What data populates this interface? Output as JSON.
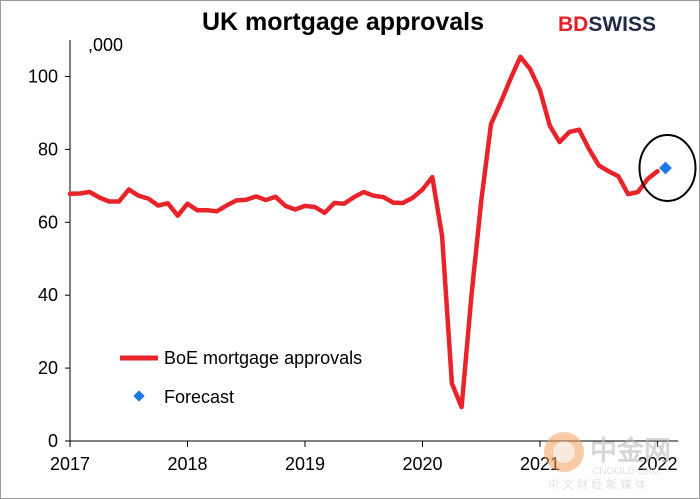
{
  "brand": {
    "logo_left": "BD",
    "logo_right": "SWISS"
  },
  "watermark": {
    "main": "中金网",
    "sub_en": "CNGOLD.ORG",
    "sub_cn": "中 文 财 经 新 媒 体"
  },
  "chart_data": {
    "type": "line",
    "title": "UK mortgage approvals",
    "ylabel": ",000",
    "ylim": [
      0,
      110
    ],
    "xlim": [
      2017,
      2022.35
    ],
    "yticks": [
      0,
      20,
      40,
      60,
      80,
      100
    ],
    "xticks": [
      "2017",
      "2018",
      "2019",
      "2020",
      "2021",
      "2022"
    ],
    "grid": false,
    "legend_position": "bottom-left",
    "colors": {
      "actual": "#e8232a",
      "forecast": "#1e78e6",
      "highlight": "#000000"
    },
    "series": [
      {
        "name": "BoE mortgage approvals",
        "x": [
          2017.0,
          2017.083,
          2017.167,
          2017.25,
          2017.333,
          2017.417,
          2017.5,
          2017.583,
          2017.667,
          2017.75,
          2017.833,
          2017.917,
          2018.0,
          2018.083,
          2018.167,
          2018.25,
          2018.333,
          2018.417,
          2018.5,
          2018.583,
          2018.667,
          2018.75,
          2018.833,
          2018.917,
          2019.0,
          2019.083,
          2019.167,
          2019.25,
          2019.333,
          2019.417,
          2019.5,
          2019.583,
          2019.667,
          2019.75,
          2019.833,
          2019.917,
          2020.0,
          2020.083,
          2020.167,
          2020.25,
          2020.333,
          2020.417,
          2020.5,
          2020.583,
          2020.667,
          2020.75,
          2020.833,
          2020.917,
          2021.0,
          2021.083,
          2021.167,
          2021.25,
          2021.333,
          2021.417,
          2021.5,
          2021.583,
          2021.667,
          2021.75,
          2021.833,
          2021.917
        ],
        "values": [
          67.8,
          67.9,
          68.3,
          66.8,
          65.7,
          65.7,
          69.0,
          67.3,
          66.5,
          64.6,
          65.2,
          61.8,
          65.1,
          63.3,
          63.3,
          63.0,
          64.6,
          66.0,
          66.2,
          67.1,
          66.1,
          67.0,
          64.5,
          63.5,
          64.5,
          64.2,
          62.6,
          65.3,
          65.1,
          66.9,
          68.3,
          67.3,
          66.9,
          65.4,
          65.3,
          66.7,
          69.0,
          72.4,
          56.2,
          15.8,
          9.3,
          40.0,
          66.0,
          86.9,
          93.0,
          99.4,
          105.4,
          102.0,
          96.2,
          86.5,
          82.0,
          84.8,
          85.4,
          80.1,
          75.6,
          74.0,
          72.6,
          67.7,
          68.3,
          71.9
        ]
      },
      {
        "name": "Forecast",
        "x": [
          2022.0
        ],
        "values": [
          74.9
        ]
      }
    ],
    "extra_actual": {
      "x": [
        2022.0
      ],
      "values": [
        74.0
      ]
    }
  }
}
